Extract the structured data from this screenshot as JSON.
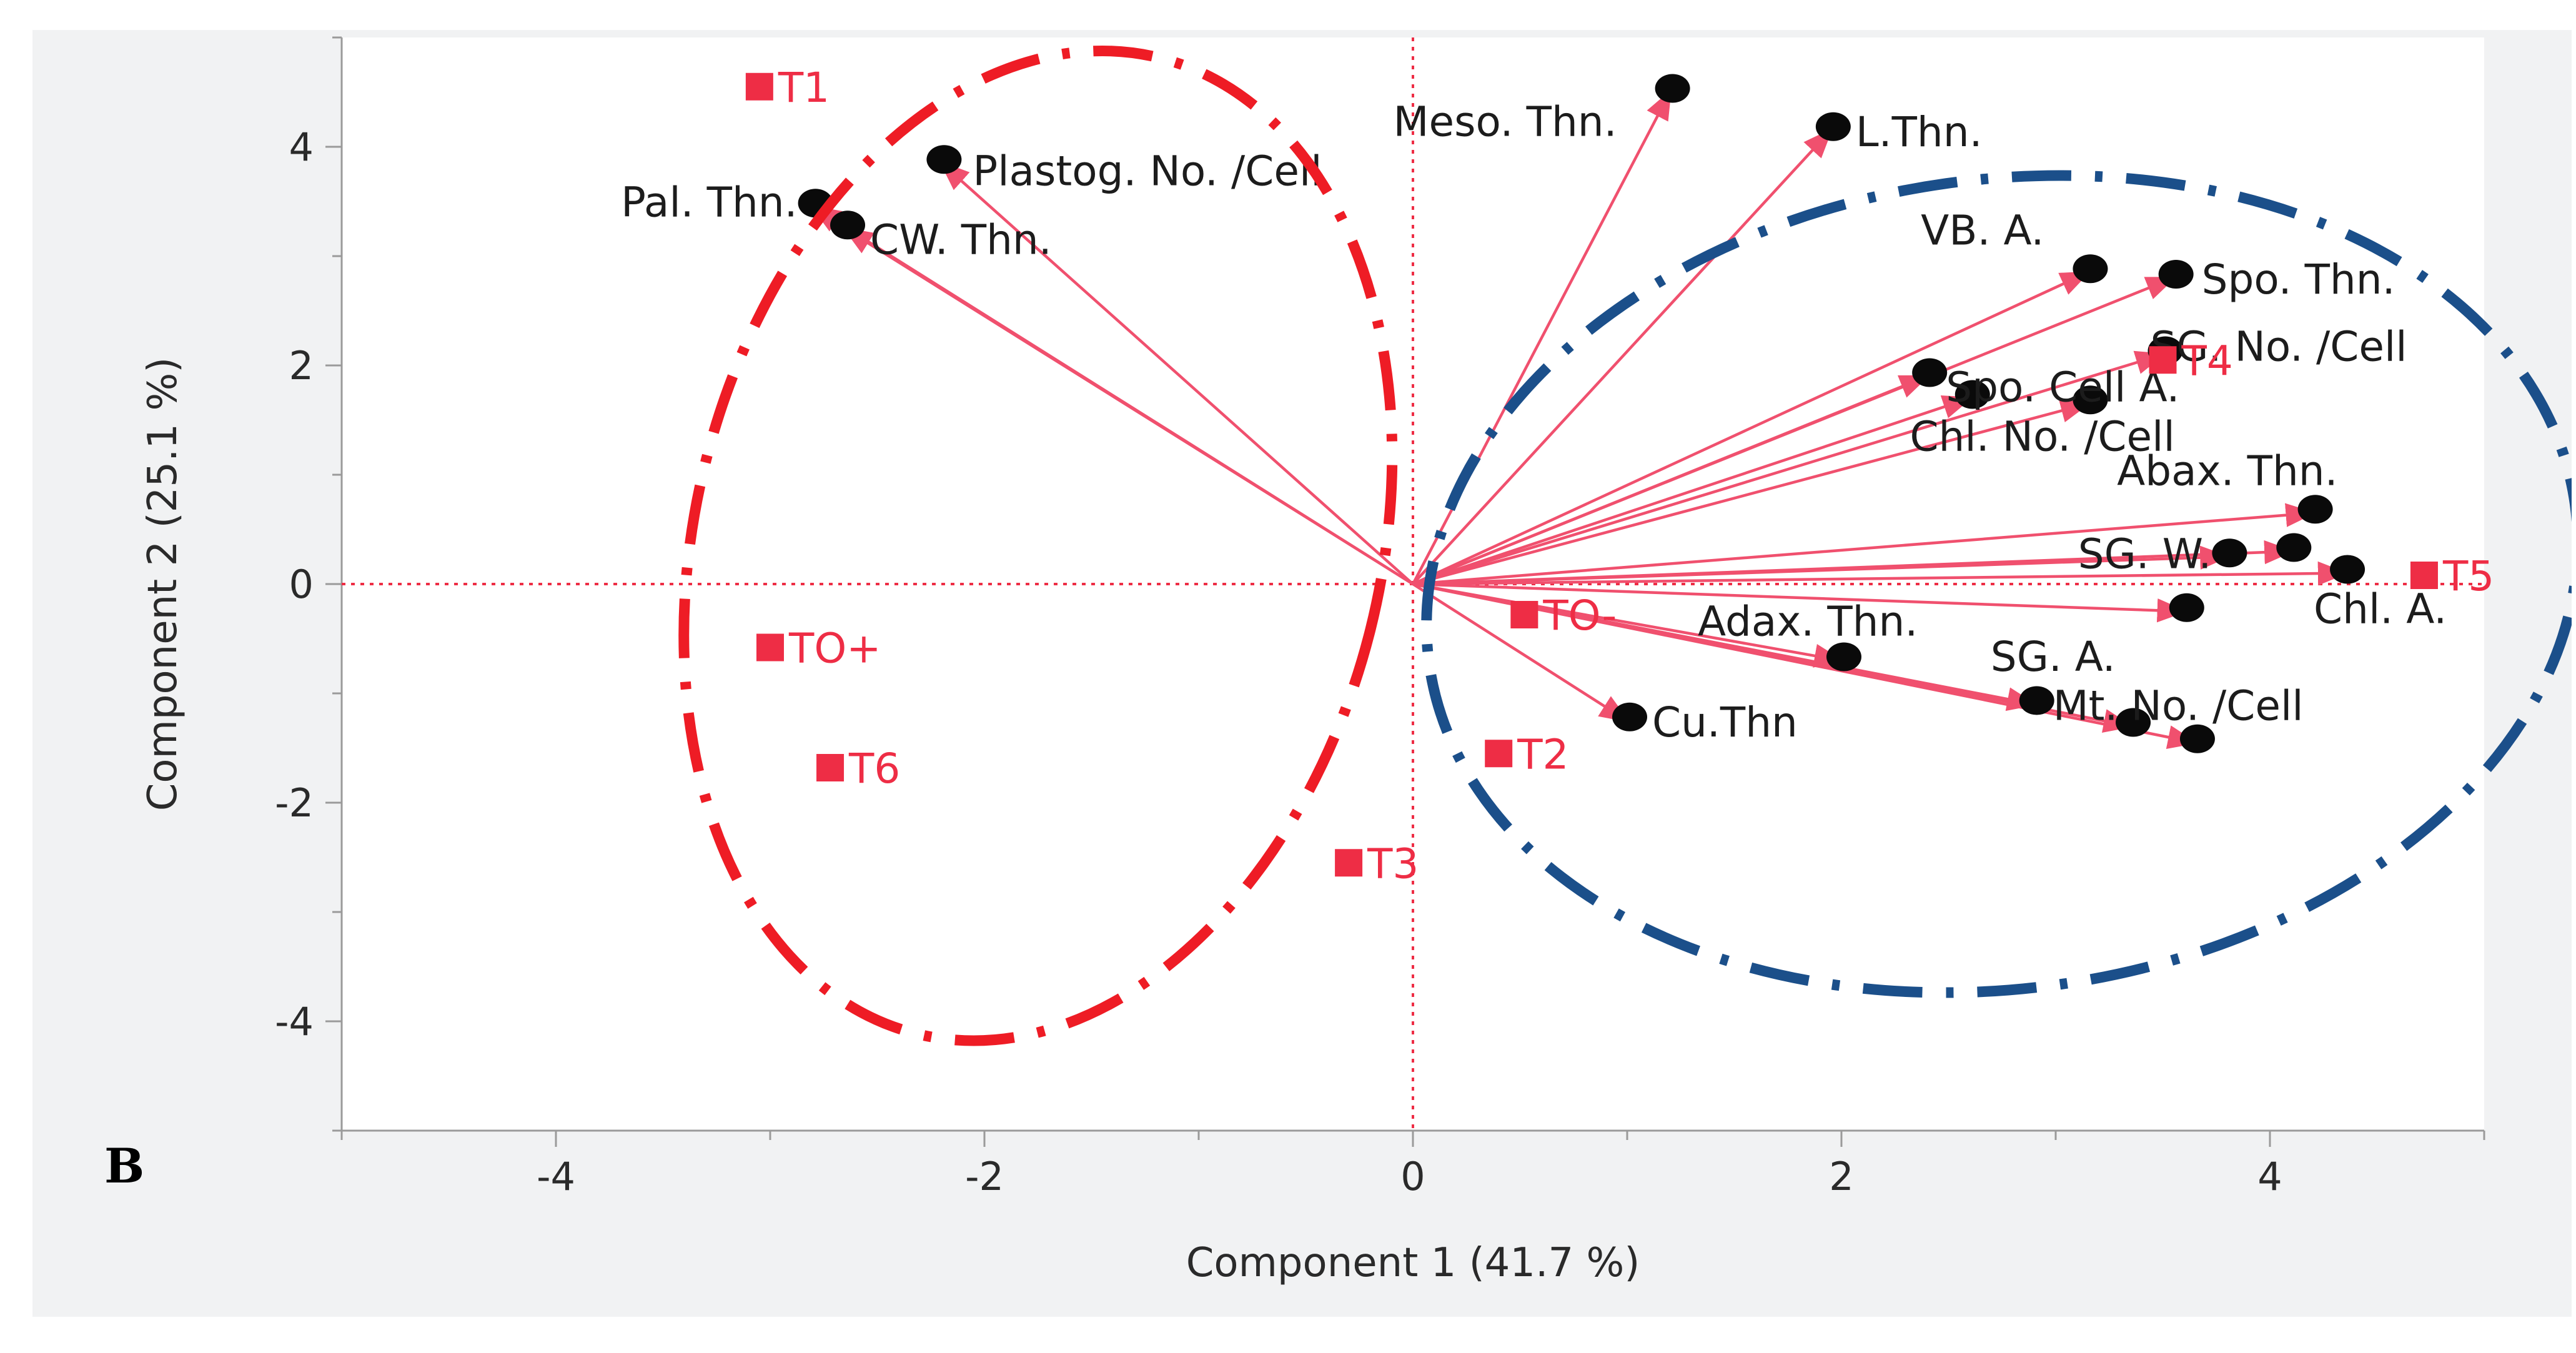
{
  "panel_label": "B",
  "colors": {
    "panel_bg": "#f1f2f3",
    "plot_bg": "#ffffff",
    "vector": "#f0506e",
    "observation": "#ee2d45",
    "origin_lines": "#ee2d45",
    "group_left": "#ee1c25",
    "group_right": "#1b4f8a",
    "points": "#0a0a0a"
  },
  "chart_data": {
    "type": "scatter",
    "subtype": "pca-biplot",
    "xlabel": "Component 1  (41.7 %)",
    "ylabel": "Component 2  (25.1 %)",
    "xlim": [
      -5,
      5
    ],
    "ylim": [
      -5,
      5
    ],
    "xticks": [
      -4,
      -2,
      0,
      2,
      4
    ],
    "yticks": [
      -4,
      -2,
      0,
      2,
      4
    ],
    "reference_lines": "dotted lines at x = 0 and y = 0",
    "loadings": [
      {
        "label": "Plastog. No. /Cell",
        "x": -2.2,
        "y": 3.85
      },
      {
        "label": "Pal. Thn.",
        "x": -2.8,
        "y": 3.45
      },
      {
        "label": "CW. Thn.",
        "x": -2.65,
        "y": 3.25
      },
      {
        "label": "Meso. Thn.",
        "x": 1.2,
        "y": 4.5
      },
      {
        "label": "L.Thn.",
        "x": 1.95,
        "y": 4.15
      },
      {
        "label": "VB. A.",
        "x": 3.15,
        "y": 2.85
      },
      {
        "label": "Spo. Thn.",
        "x": 3.55,
        "y": 2.8
      },
      {
        "label": "SG. No. /Cell",
        "x": 3.5,
        "y": 2.1
      },
      {
        "label": "Spo. Cell A.",
        "x": 2.4,
        "y": 1.9
      },
      {
        "label": "Chl. No. /Cell",
        "x": 3.15,
        "y": 1.65
      },
      {
        "label": "Abax. Thn.",
        "x": 4.2,
        "y": 0.65
      },
      {
        "label": "SG. W.",
        "x": 3.8,
        "y": 0.25
      },
      {
        "label": "Chl. A.",
        "x": 4.35,
        "y": 0.1
      },
      {
        "label": "SG. A.",
        "x": 3.6,
        "y": -0.25
      },
      {
        "label": "Adax. Thn.",
        "x": 2.0,
        "y": -0.7
      },
      {
        "label": "Mt. No. /Cell",
        "x": 2.9,
        "y": -1.1
      },
      {
        "label": "Cu.Thn",
        "x": 1.0,
        "y": -1.25
      }
    ],
    "unlabeled_loadings": [
      {
        "x": 2.6,
        "y": 1.7
      },
      {
        "x": 4.1,
        "y": 0.3
      },
      {
        "x": 3.35,
        "y": -1.3
      },
      {
        "x": 3.65,
        "y": -1.45
      }
    ],
    "observations": [
      {
        "label": "T1",
        "x": -3.05,
        "y": 4.55
      },
      {
        "label": "T4",
        "x": 3.5,
        "y": 2.05
      },
      {
        "label": "T5",
        "x": 4.72,
        "y": 0.08
      },
      {
        "label": "TO-",
        "x": 0.52,
        "y": -0.28
      },
      {
        "label": "TO+",
        "x": -3.0,
        "y": -0.58
      },
      {
        "label": "T6",
        "x": -2.72,
        "y": -1.68
      },
      {
        "label": "T2",
        "x": 0.4,
        "y": -1.55
      },
      {
        "label": "T3",
        "x": -0.3,
        "y": -2.55
      }
    ],
    "groups": [
      {
        "color": "#ee1c25",
        "style": "dash-dot ellipse",
        "center": [
          -1.75,
          0.35
        ],
        "radius_x": 1.6,
        "radius_y": 4.6,
        "rotation_deg": 14
      },
      {
        "color": "#1b4f8a",
        "style": "dash-dot ellipse",
        "center": [
          2.75,
          0.0
        ],
        "radius_x": 2.7,
        "radius_y": 3.7,
        "rotation_deg": -8
      }
    ]
  }
}
